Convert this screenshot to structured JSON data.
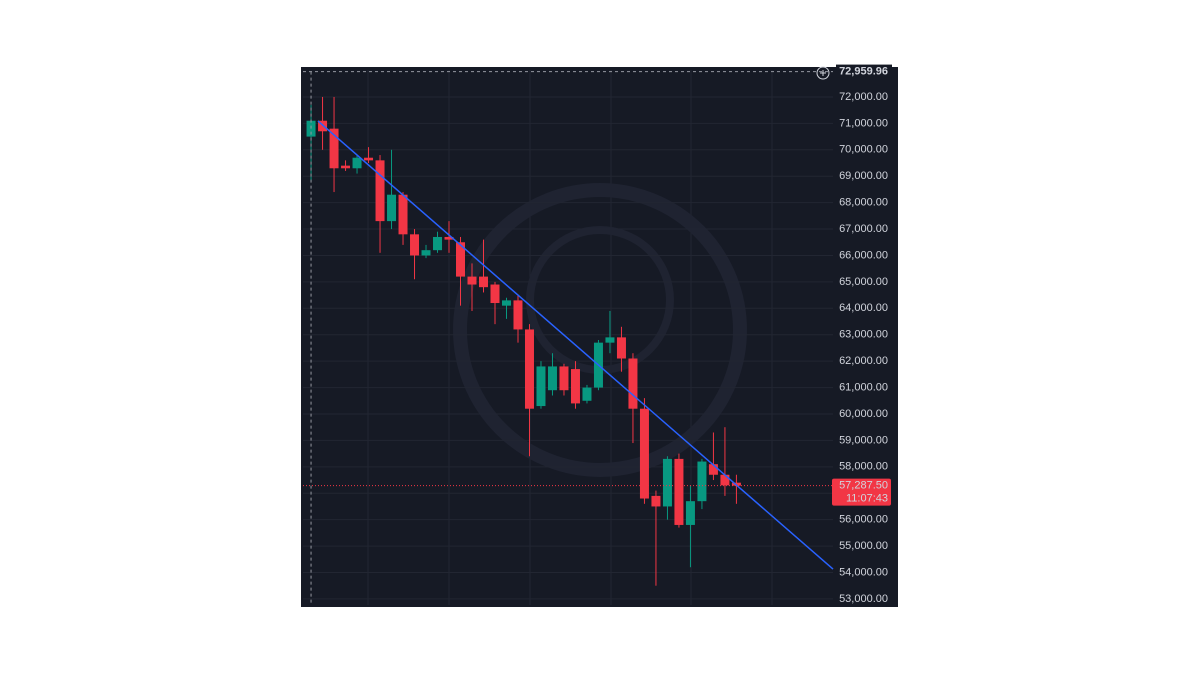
{
  "chart_data": {
    "type": "candlestick",
    "open": [
      70500,
      71100,
      70800,
      69400,
      69300,
      69700,
      69600,
      67300,
      68300,
      66800,
      66000,
      66200,
      66700,
      66500,
      65200,
      65200,
      64900,
      64100,
      64300,
      63200,
      60300,
      60900,
      61800,
      61700,
      60500,
      61000,
      62700,
      62900,
      62100,
      60200,
      56900,
      56500,
      58300,
      55800,
      56700,
      58100,
      57700,
      57400
    ],
    "high": [
      71700,
      72000,
      72000,
      69600,
      69800,
      70100,
      69800,
      70000,
      68400,
      67000,
      66400,
      66900,
      67300,
      66700,
      65700,
      66600,
      65000,
      64400,
      64500,
      63400,
      62000,
      62300,
      61900,
      62000,
      61100,
      62800,
      63900,
      63300,
      62300,
      60600,
      57100,
      58400,
      58500,
      57300,
      58300,
      59300,
      59500,
      57700
    ],
    "low": [
      68800,
      70000,
      68400,
      69200,
      69100,
      69500,
      66100,
      67000,
      66400,
      65100,
      65900,
      66100,
      66100,
      64100,
      63900,
      64600,
      63400,
      63600,
      62700,
      58400,
      60200,
      60700,
      60700,
      60200,
      60400,
      60900,
      62300,
      61600,
      58900,
      56600,
      53500,
      56000,
      55700,
      54200,
      56400,
      57500,
      56900,
      56600
    ],
    "close": [
      71100,
      70700,
      69300,
      69300,
      69700,
      69600,
      67300,
      68300,
      66800,
      66000,
      66200,
      66700,
      66600,
      65200,
      64900,
      64800,
      64200,
      64300,
      63200,
      60200,
      61800,
      61800,
      60900,
      60400,
      61000,
      62700,
      62900,
      62100,
      60200,
      56800,
      56500,
      58300,
      55800,
      56700,
      58200,
      57700,
      57300,
      57287.5
    ],
    "up_color": "#089981",
    "down_color": "#f23645",
    "xlim": [
      -0.7,
      45.4
    ],
    "ylim": [
      52770,
      73020
    ],
    "yticks": [
      {
        "value": 53000,
        "label": "53,000.00"
      },
      {
        "value": 54000,
        "label": "54,000.00"
      },
      {
        "value": 55000,
        "label": "55,000.00"
      },
      {
        "value": 56000,
        "label": "56,000.00"
      },
      {
        "value": 57000,
        "label": "57,000.00"
      },
      {
        "value": 58000,
        "label": "58,000.00"
      },
      {
        "value": 59000,
        "label": "59,000.00"
      },
      {
        "value": 60000,
        "label": "60,000.00"
      },
      {
        "value": 61000,
        "label": "61,000.00"
      },
      {
        "value": 62000,
        "label": "62,000.00"
      },
      {
        "value": 63000,
        "label": "63,000.00"
      },
      {
        "value": 64000,
        "label": "64,000.00"
      },
      {
        "value": 65000,
        "label": "65,000.00"
      },
      {
        "value": 66000,
        "label": "66,000.00"
      },
      {
        "value": 67000,
        "label": "67,000.00"
      },
      {
        "value": 68000,
        "label": "68,000.00"
      },
      {
        "value": 69000,
        "label": "69,000.00"
      },
      {
        "value": 70000,
        "label": "70,000.00"
      },
      {
        "value": 71000,
        "label": "71,000.00"
      },
      {
        "value": 72000,
        "label": "72,000.00"
      }
    ],
    "grid": true,
    "trendline": {
      "x": [
        0.6,
        45.4
      ],
      "y": [
        71090,
        54130
      ],
      "color": "#2962ff"
    },
    "last_price": {
      "value": 57287.5,
      "label": "57,287.50"
    },
    "countdown": "11:07:43",
    "crosshair_price": {
      "value": 72959.96,
      "label": "72,959.96"
    }
  }
}
